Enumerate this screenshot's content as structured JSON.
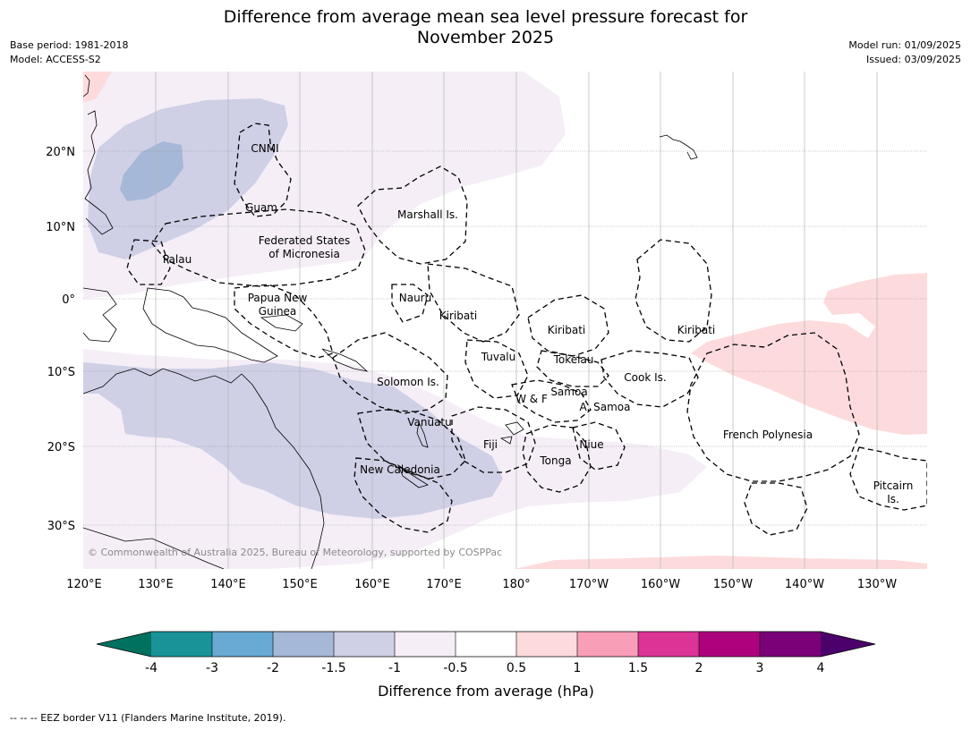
{
  "title_line1": "Difference from average mean sea level pressure forecast for",
  "title_line2": "November 2025",
  "base_period": "Base period: 1981-2018",
  "model": "Model: ACCESS-S2",
  "model_run": "Model run: 01/09/2025",
  "issued": "Issued: 03/09/2025",
  "copyright": "© Commonwealth of Australia 2025, Bureau of Meteorology, supported by COSPPac",
  "lat_labels": [
    "20°N",
    "10°N",
    "0°",
    "10°S",
    "20°S",
    "30°S"
  ],
  "lon_labels": [
    "120°E",
    "130°E",
    "140°E",
    "150°E",
    "160°E",
    "170°E",
    "180°",
    "170°W",
    "160°W",
    "150°W",
    "140°W",
    "130°W"
  ],
  "region_labels": {
    "cnmi": "CNMI",
    "guam": "Guam",
    "marshall": "Marshall Is.",
    "fsm_1": "Federated States",
    "fsm_2": "of Micronesia",
    "palau": "Palau",
    "png_1": "Papua New",
    "png_2": "Guinea",
    "nauru": "Nauru",
    "kiribati_west": "Kiribati",
    "kiribati_central": "Kiribati",
    "kiribati_east": "Kiribati",
    "tuvalu": "Tuvalu",
    "tokelau": "Tokelau",
    "cook": "Cook Is.",
    "solomon": "Solomon Is.",
    "samoa": "Samoa",
    "wf": "W & F",
    "amsamoa": "A. Samoa",
    "vanuatu": "Vanuatu",
    "fiji": "Fiji",
    "niue": "Niue",
    "frpoly": "French Polynesia",
    "tonga": "Tonga",
    "newcal": "New Caledonia",
    "pitcairn_1": "Pitcairn",
    "pitcairn_2": "Is."
  },
  "legend": {
    "ticks": [
      "-4",
      "-3",
      "-2",
      "-1.5",
      "-1",
      "-0.5",
      "0.5",
      "1",
      "1.5",
      "2",
      "3",
      "4"
    ],
    "colors": [
      "#00705f",
      "#1a9398",
      "#68aad4",
      "#a6b8d7",
      "#cfd0e6",
      "#f5eef7",
      "#ffffff",
      "#fddbdc",
      "#f89fb7",
      "#dc3496",
      "#ae017e",
      "#7a0177",
      "#4c006a"
    ],
    "label": "Difference from average (hPa)"
  },
  "footnote": "-- -- -- EEZ border V11 (Flanders Marine Institute, 2019)."
}
